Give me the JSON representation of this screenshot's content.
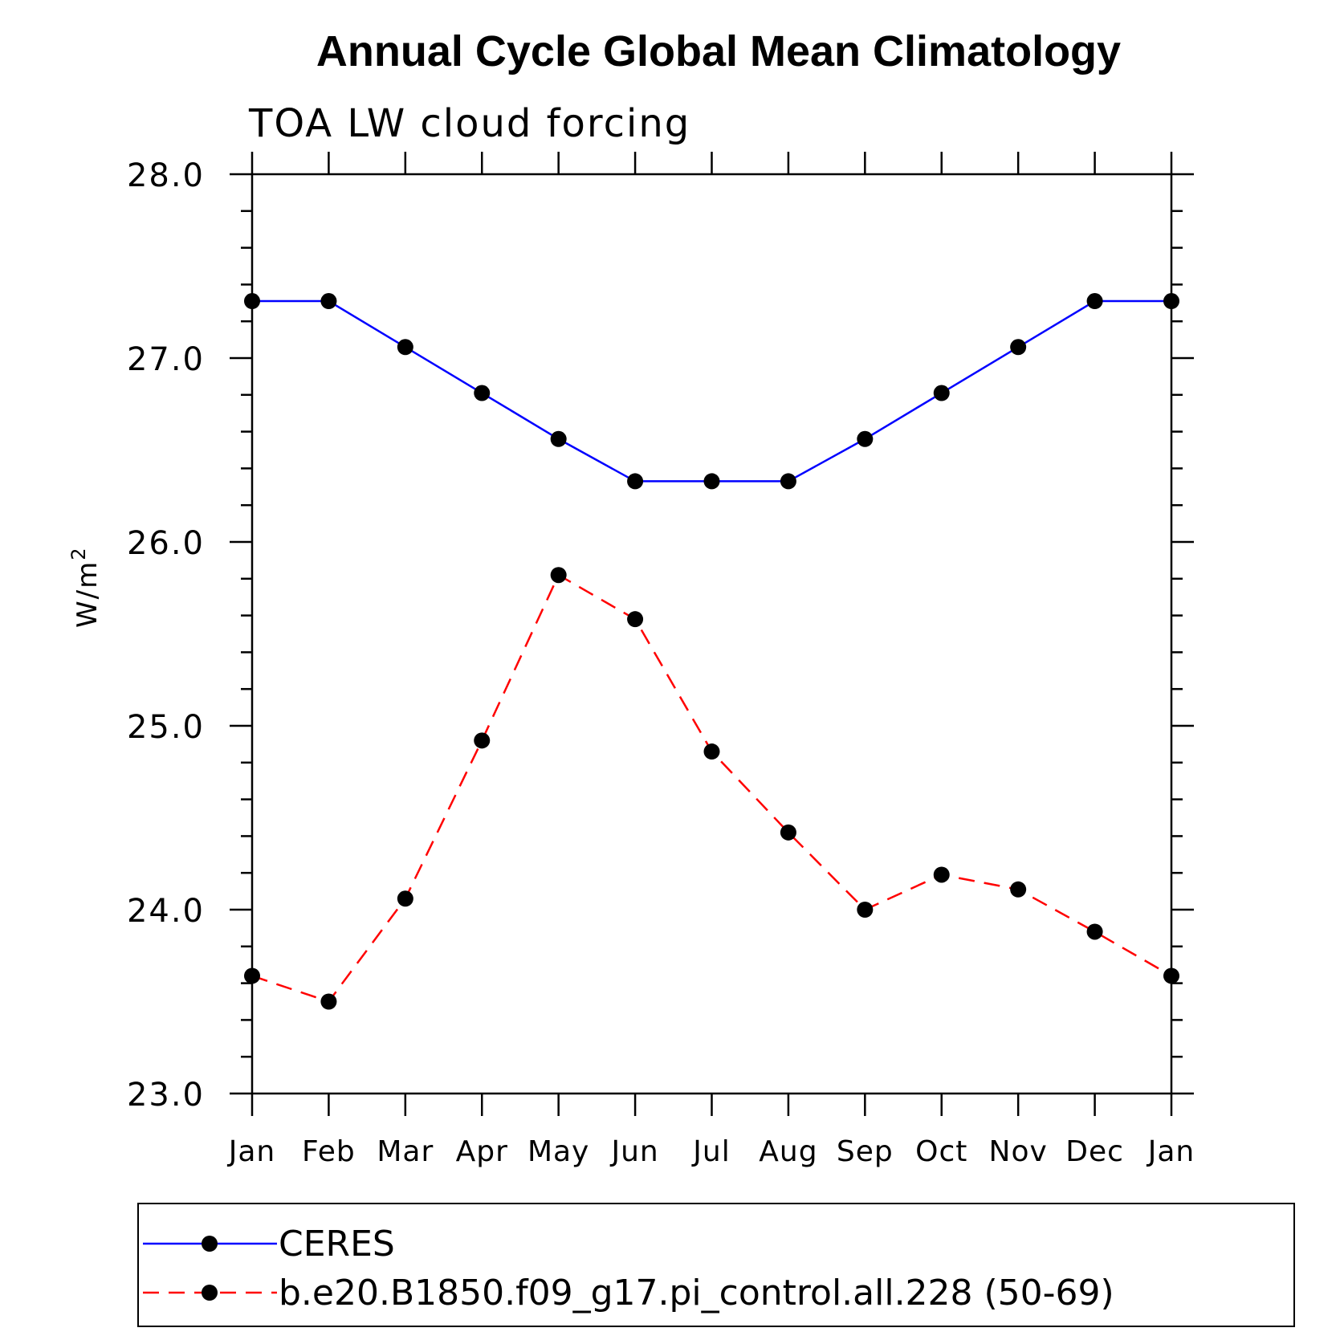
{
  "chart_data": {
    "type": "line",
    "title": "Annual Cycle Global Mean Climatology",
    "subtitle": "TOA LW cloud forcing",
    "ylabel_base": "W/m",
    "ylabel_sup": "2",
    "xlabel": "",
    "ylim": [
      23.0,
      28.0
    ],
    "yticks": [
      "23.0",
      "24.0",
      "25.0",
      "26.0",
      "27.0",
      "28.0"
    ],
    "categories": [
      "Jan",
      "Feb",
      "Mar",
      "Apr",
      "May",
      "Jun",
      "Jul",
      "Aug",
      "Sep",
      "Oct",
      "Nov",
      "Dec",
      "Jan"
    ],
    "grid": false,
    "legend_position": "bottom",
    "series": [
      {
        "name": "CERES",
        "color": "#0000ff",
        "dash": "solid",
        "marker": "filled-circle",
        "values": [
          27.31,
          27.31,
          27.06,
          26.81,
          26.56,
          26.33,
          26.33,
          26.33,
          26.56,
          26.81,
          27.06,
          27.31,
          27.31
        ]
      },
      {
        "name": "b.e20.B1850.f09_g17.pi_control.all.228 (50-69)",
        "color": "#ff0000",
        "dash": "dashed",
        "marker": "filled-circle",
        "values": [
          23.64,
          23.5,
          24.06,
          24.92,
          25.82,
          25.58,
          24.86,
          24.42,
          24.0,
          24.19,
          24.11,
          23.88,
          23.64
        ]
      }
    ]
  }
}
